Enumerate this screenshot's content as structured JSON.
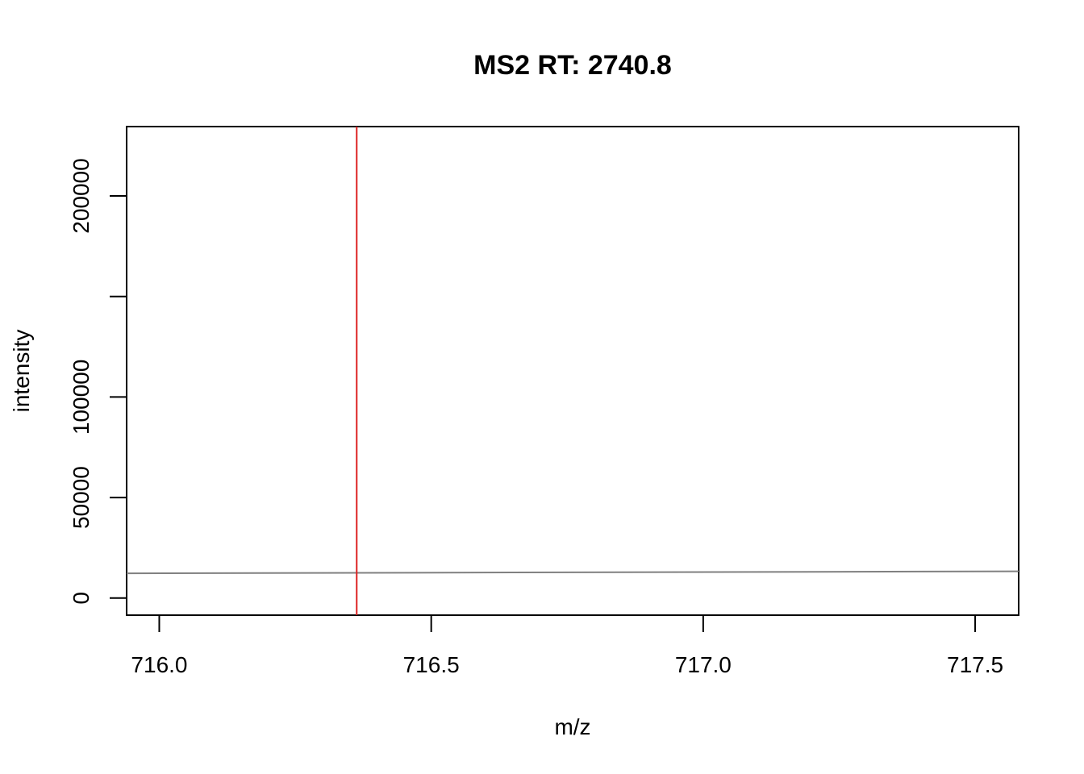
{
  "chart_data": {
    "type": "line",
    "title": "MS2 RT: 2740.8",
    "xlabel": "m/z",
    "ylabel": "intensity",
    "xlim": [
      715.94,
      717.58
    ],
    "ylim": [
      -8500,
      234500
    ],
    "x_ticks": [
      716.0,
      716.5,
      717.0,
      717.5
    ],
    "x_tick_labels": [
      "716.0",
      "716.5",
      "717.0",
      "717.5"
    ],
    "y_ticks": [
      0,
      50000,
      100000,
      150000,
      200000
    ],
    "y_tick_labels": [
      "0",
      "50000",
      "100000",
      "",
      "200000"
    ],
    "grid": false,
    "legend": "none",
    "series": [
      {
        "x": [
          715.94,
          717.58
        ],
        "values": [
          12300,
          13300
        ],
        "color": "#808080"
      }
    ],
    "vlines": [
      {
        "x": 716.363,
        "color": "#dd2222"
      }
    ]
  }
}
